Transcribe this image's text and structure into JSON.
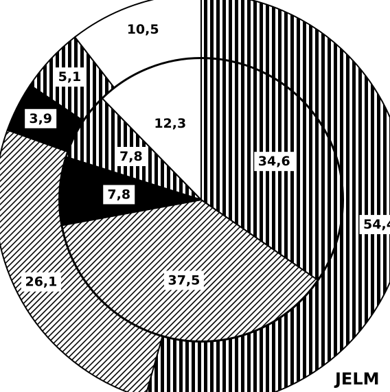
{
  "chart_data": {
    "type": "pie",
    "pattern_legend": {
      "vertical-lines": "vertical stripes",
      "diagonal-lines": "diagonal hatching",
      "solid-black": "solid black",
      "white": "white"
    },
    "rings": [
      {
        "name": "",
        "ring": "outer",
        "slices": [
          {
            "label": "54,4",
            "value": 54.4,
            "pattern": "vertical-lines"
          },
          {
            "label": "26,1",
            "value": 26.1,
            "pattern": "diagonal-lines"
          },
          {
            "label": "3,9",
            "value": 3.9,
            "pattern": "solid-black"
          },
          {
            "label": "5,1",
            "value": 5.1,
            "pattern": "vertical-lines"
          },
          {
            "label": "10,5",
            "value": 10.5,
            "pattern": "white"
          }
        ]
      },
      {
        "name": "",
        "ring": "inner",
        "slices": [
          {
            "label": "34,6",
            "value": 34.6,
            "pattern": "vertical-lines"
          },
          {
            "label": "37,5",
            "value": 37.5,
            "pattern": "diagonal-lines"
          },
          {
            "label": "7,8",
            "value": 7.8,
            "pattern": "solid-black"
          },
          {
            "label": "7,8",
            "value": 7.8,
            "pattern": "vertical-lines"
          },
          {
            "label": "12,3",
            "value": 12.3,
            "pattern": "white"
          }
        ]
      }
    ],
    "legend_text": "JELM"
  }
}
